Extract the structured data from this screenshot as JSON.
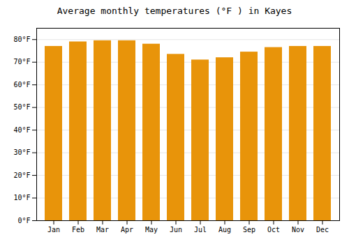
{
  "chart_data": {
    "type": "bar",
    "title": "Average monthly temperatures (°F ) in Kayes",
    "categories": [
      "Jan",
      "Feb",
      "Mar",
      "Apr",
      "May",
      "Jun",
      "Jul",
      "Aug",
      "Sep",
      "Oct",
      "Nov",
      "Dec"
    ],
    "values": [
      77.0,
      79.0,
      79.5,
      79.5,
      78.0,
      73.5,
      71.0,
      72.0,
      74.5,
      76.5,
      77.0,
      77.0
    ],
    "color": "#E8940A",
    "ylim": [
      0,
      85
    ],
    "yticks": [
      {
        "value": 0,
        "label": "0°F"
      },
      {
        "value": 10,
        "label": "10°F"
      },
      {
        "value": 20,
        "label": "20°F"
      },
      {
        "value": 30,
        "label": "30°F"
      },
      {
        "value": 40,
        "label": "40°F"
      },
      {
        "value": 50,
        "label": "50°F"
      },
      {
        "value": 60,
        "label": "60°F"
      },
      {
        "value": 70,
        "label": "70°F"
      },
      {
        "value": 80,
        "label": "80°F"
      }
    ],
    "grid": true
  }
}
